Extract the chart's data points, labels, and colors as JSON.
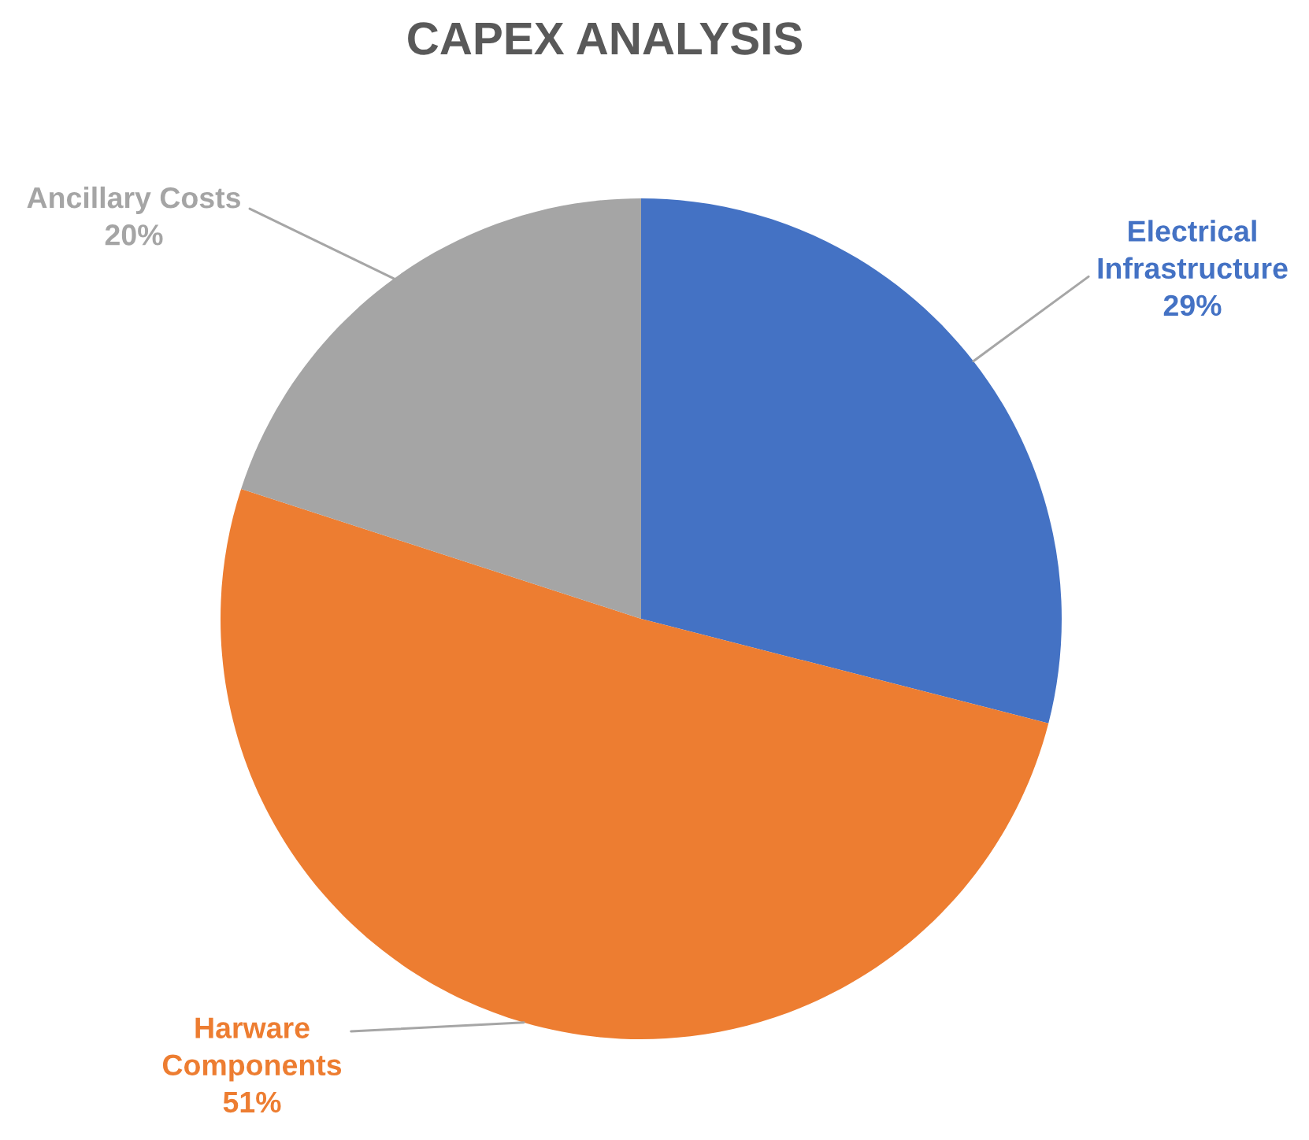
{
  "chart_data": {
    "type": "pie",
    "title": "CAPEX ANALYSIS",
    "categories": [
      "Electrical Infrastructure",
      "Harware Components",
      "Ancillary Costs"
    ],
    "values": [
      29,
      51,
      20
    ],
    "colors": [
      "#4472c4",
      "#ed7d31",
      "#a5a5a5"
    ],
    "value_labels": [
      "29%",
      "51%",
      "20%"
    ]
  }
}
